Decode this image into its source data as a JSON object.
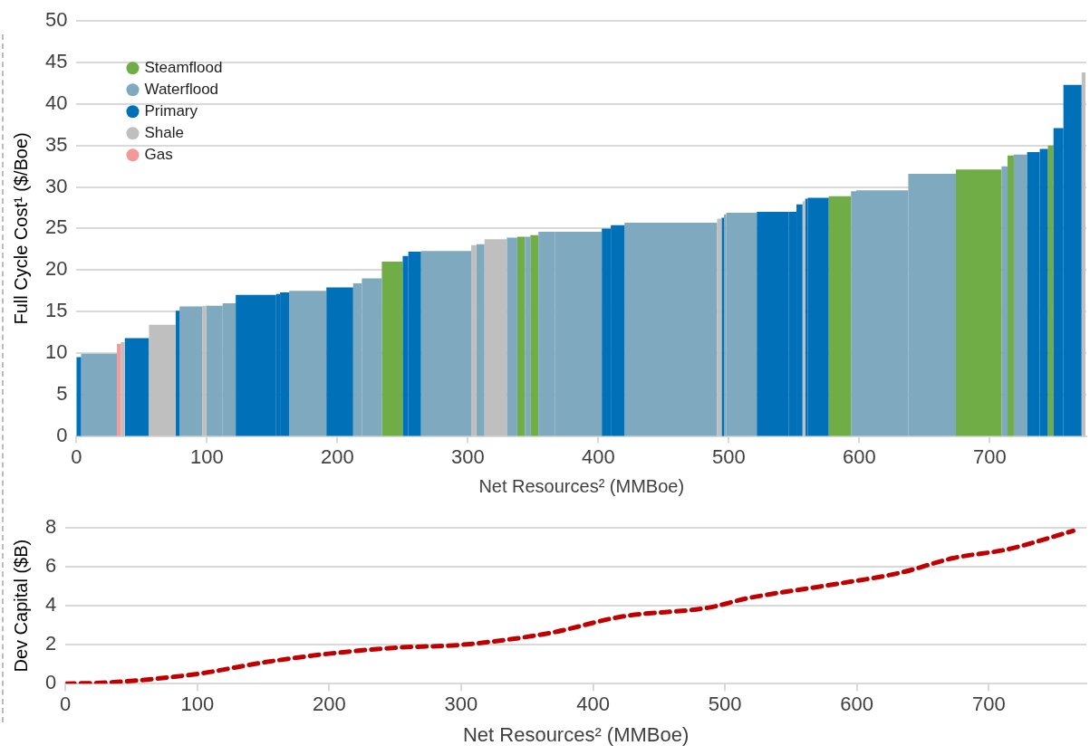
{
  "chart_data": [
    {
      "type": "histogram",
      "xlabel": "Net Resources² (MMBoe)",
      "ylabel": "Full Cycle Cost¹ ($/Boe)",
      "xlim": [
        0,
        774
      ],
      "xticks": [
        0,
        100,
        200,
        300,
        400,
        500,
        600,
        700
      ],
      "ylim": [
        0,
        50
      ],
      "yticks": [
        0,
        5,
        10,
        15,
        20,
        25,
        30,
        35,
        40,
        45,
        50
      ],
      "grid": "y",
      "legend": "top left",
      "bins": [
        0,
        3.5,
        31,
        34,
        37,
        55.5,
        76,
        79,
        96.5,
        99.4,
        112,
        122,
        153,
        156,
        163,
        191.5,
        212,
        218.7,
        234,
        250,
        254.3,
        264,
        302.5,
        306.5,
        312.7,
        329.8,
        337.8,
        343.8,
        347.8,
        354,
        366.8,
        402.6,
        409.5,
        420,
        491,
        494.4,
        496.3,
        498,
        521.4,
        546,
        551.8,
        556.5,
        558.5,
        560.4,
        576.5,
        593.6,
        597.6,
        637.5,
        674,
        709,
        713.6,
        718.4,
        728.6,
        738.3,
        744.5,
        748.8,
        756.4,
        770.4,
        773.3
      ],
      "series": [
        {
          "name": "Steamflood",
          "color": "#70ad47",
          "values": [
            null,
            null,
            null,
            null,
            null,
            null,
            null,
            null,
            null,
            null,
            null,
            null,
            null,
            null,
            null,
            null,
            null,
            null,
            21.0,
            null,
            null,
            null,
            null,
            null,
            null,
            null,
            24.0,
            null,
            24.2,
            null,
            null,
            null,
            null,
            null,
            null,
            null,
            null,
            null,
            null,
            null,
            null,
            null,
            null,
            null,
            28.9,
            null,
            null,
            null,
            32.1,
            null,
            33.8,
            null,
            null,
            null,
            35.0,
            null,
            null,
            null
          ]
        },
        {
          "name": "Waterflood",
          "color": "#7fa9bf",
          "values": [
            null,
            9.9,
            null,
            null,
            null,
            null,
            null,
            15.6,
            null,
            15.7,
            16.0,
            null,
            null,
            null,
            17.5,
            null,
            18.4,
            19.0,
            null,
            null,
            null,
            22.3,
            null,
            23.1,
            null,
            23.9,
            null,
            24.0,
            null,
            24.6,
            24.6,
            null,
            null,
            25.7,
            null,
            null,
            26.7,
            26.9,
            null,
            null,
            null,
            null,
            null,
            null,
            null,
            29.5,
            29.6,
            31.6,
            null,
            32.5,
            null,
            33.9,
            null,
            null,
            null,
            null,
            null,
            null
          ]
        },
        {
          "name": "Primary",
          "color": "#0070b8",
          "values": [
            9.5,
            null,
            null,
            null,
            11.8,
            null,
            15.1,
            null,
            null,
            null,
            null,
            17.0,
            17.1,
            17.3,
            null,
            17.9,
            null,
            null,
            null,
            21.7,
            22.2,
            null,
            null,
            null,
            null,
            null,
            null,
            null,
            null,
            null,
            null,
            25.0,
            25.4,
            null,
            null,
            26.3,
            null,
            null,
            27.0,
            27.0,
            27.9,
            null,
            28.6,
            28.7,
            null,
            null,
            null,
            null,
            null,
            null,
            null,
            null,
            34.2,
            34.6,
            null,
            37.1,
            42.3,
            null
          ]
        },
        {
          "name": "Shale",
          "color": "#bfbfbf",
          "values": [
            null,
            null,
            null,
            11.3,
            null,
            13.4,
            null,
            null,
            15.7,
            null,
            null,
            null,
            null,
            null,
            null,
            null,
            null,
            null,
            null,
            null,
            null,
            null,
            23.0,
            null,
            23.7,
            null,
            null,
            null,
            null,
            null,
            null,
            null,
            null,
            null,
            26.2,
            null,
            null,
            null,
            null,
            null,
            null,
            28.3,
            null,
            null,
            null,
            null,
            null,
            null,
            null,
            null,
            null,
            null,
            null,
            null,
            null,
            null,
            null,
            43.8
          ]
        },
        {
          "name": "Gas",
          "color": "#f4999a",
          "values": [
            null,
            null,
            11.1,
            null,
            null,
            null,
            null,
            null,
            null,
            null,
            null,
            null,
            null,
            null,
            null,
            null,
            null,
            null,
            null,
            null,
            null,
            null,
            null,
            null,
            null,
            null,
            null,
            null,
            null,
            null,
            null,
            null,
            null,
            null,
            null,
            null,
            null,
            null,
            null,
            null,
            null,
            null,
            null,
            null,
            null,
            null,
            null,
            null,
            null,
            null,
            null,
            null,
            null,
            null,
            null,
            null,
            null,
            null
          ]
        }
      ]
    },
    {
      "type": "line",
      "xlabel": "Net Resources² (MMBoe)",
      "ylabel": "Dev Capital ($B)",
      "xlim": [
        0,
        774
      ],
      "xticks": [
        0,
        100,
        200,
        300,
        400,
        500,
        600,
        700
      ],
      "ylim": [
        0,
        8
      ],
      "yticks": [
        0,
        2,
        4,
        6,
        8
      ],
      "grid": "y",
      "color": "#c00000",
      "line_style": "dashed",
      "marker": "none",
      "x": [
        0,
        35,
        100,
        151,
        201,
        251,
        301,
        367,
        422,
        487,
        518,
        573,
        633,
        673,
        714,
        764
      ],
      "values": [
        0,
        0.07,
        0.5,
        1.1,
        1.55,
        1.85,
        2.0,
        2.6,
        3.45,
        3.9,
        4.4,
        5.0,
        5.7,
        6.45,
        6.9,
        7.85
      ]
    }
  ]
}
